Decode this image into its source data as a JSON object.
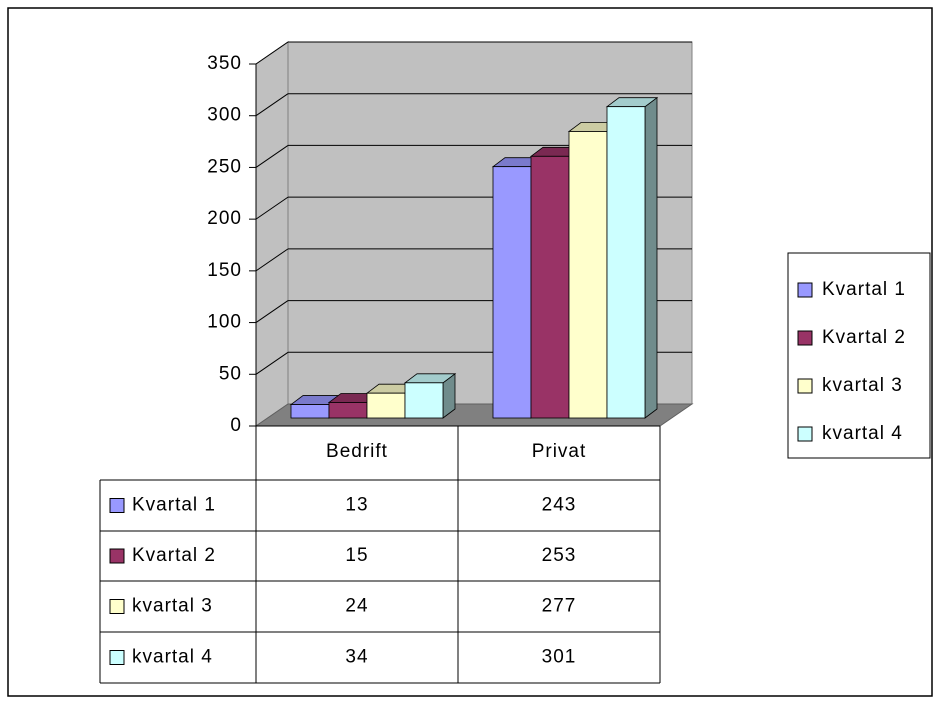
{
  "chart_data": {
    "type": "bar3d",
    "categories": [
      "Bedrift",
      "Privat"
    ],
    "series": [
      {
        "name": "Kvartal 1",
        "color": "#9999ff",
        "values": [
          13,
          243
        ]
      },
      {
        "name": "Kvartal 2",
        "color": "#993366",
        "values": [
          15,
          253
        ]
      },
      {
        "name": "kvartal 3",
        "color": "#ffffcc",
        "values": [
          24,
          277
        ]
      },
      {
        "name": "kvartal 4",
        "color": "#ccffff",
        "values": [
          34,
          301
        ]
      }
    ],
    "ylim": [
      0,
      350
    ],
    "yticks": [
      0,
      50,
      100,
      150,
      200,
      250,
      300,
      350
    ],
    "grid": true,
    "legend": "right",
    "data_table": true
  }
}
